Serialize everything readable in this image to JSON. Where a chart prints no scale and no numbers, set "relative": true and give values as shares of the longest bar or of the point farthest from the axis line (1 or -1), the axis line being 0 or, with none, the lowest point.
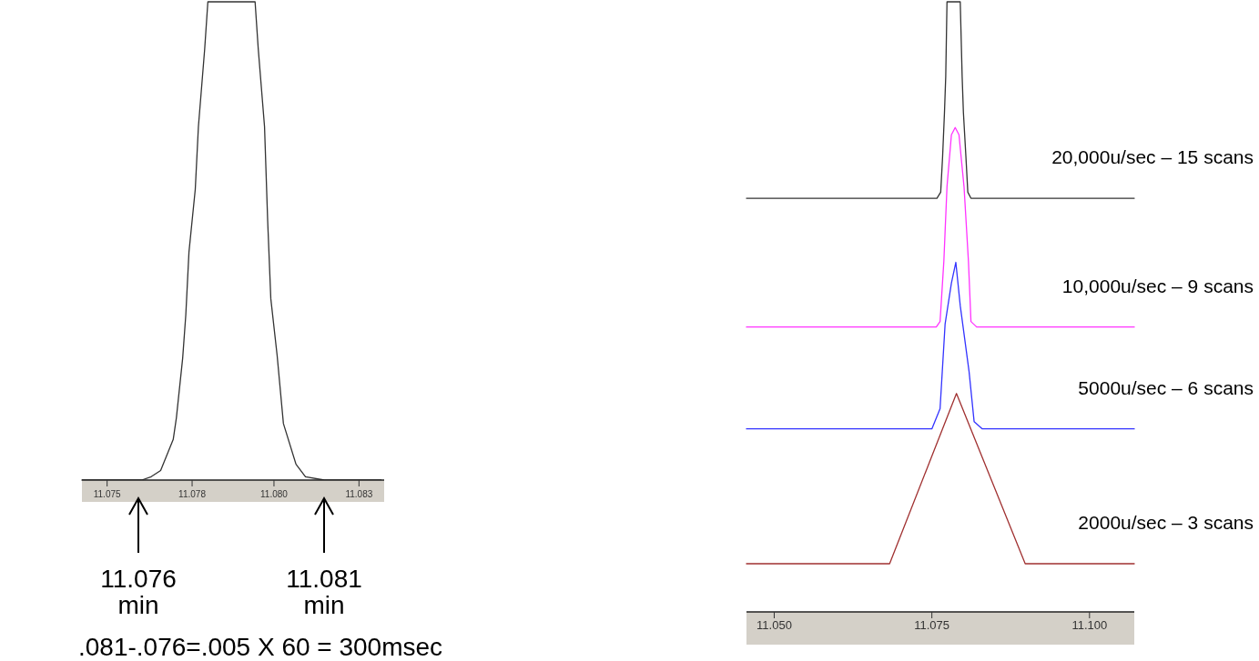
{
  "chart_data": [
    {
      "type": "line",
      "relative": true,
      "xlim": [
        11.0742,
        11.0838
      ],
      "xticks": [
        {
          "value": 11.075,
          "label": "11.075"
        },
        {
          "value": 11.0777,
          "label": "11.078"
        },
        {
          "value": 11.0803,
          "label": "11.080"
        },
        {
          "value": 11.083,
          "label": "11.083"
        }
      ],
      "tick_labels": "x",
      "grid": false,
      "legend": false,
      "series": [
        {
          "color": "#333333",
          "x": [
            11.0742,
            11.0761,
            11.0764,
            11.0767,
            11.0771,
            11.0772,
            11.0774,
            11.0775,
            11.0776,
            11.0778,
            11.0779,
            11.0781,
            11.0782,
            11.0797,
            11.0798,
            11.08,
            11.0801,
            11.0802,
            11.0804,
            11.0806,
            11.081,
            11.0813,
            11.0819,
            11.0837
          ],
          "values": [
            0,
            0,
            0.007,
            0.02,
            0.085,
            0.13,
            0.255,
            0.346,
            0.477,
            0.608,
            0.739,
            0.902,
            1,
            1,
            0.902,
            0.739,
            0.542,
            0.379,
            0.261,
            0.118,
            0.033,
            0.007,
            0,
            0
          ]
        }
      ],
      "annotations": [
        "11.076 min",
        "11.081 min",
        ".081-.076=.005 X 60 = 300msec"
      ]
    },
    {
      "type": "line",
      "relative": true,
      "xlim": [
        11.0456,
        11.1071
      ],
      "xticks": [
        {
          "value": 11.05,
          "label": "11.050"
        },
        {
          "value": 11.075,
          "label": "11.075"
        },
        {
          "value": 11.1,
          "label": "11.100"
        }
      ],
      "tick_labels": "x",
      "grid": false,
      "legend": false,
      "series": [
        {
          "name": "20,000u/sec – 15 scans",
          "color": "#333333",
          "x": [
            11.0456,
            11.0758,
            11.0764,
            11.0767,
            11.077,
            11.0772,
            11.0774,
            11.0795,
            11.0798,
            11.08,
            11.0804,
            11.0807,
            11.0812,
            11.1071
          ],
          "values": [
            0.678,
            0.678,
            0.688,
            0.746,
            0.819,
            0.878,
            1,
            1,
            0.878,
            0.819,
            0.746,
            0.688,
            0.678,
            0.678
          ]
        },
        {
          "name": "10,000u/sec – 9 scans",
          "color": "#ff33ff",
          "x": [
            11.0456,
            11.0757,
            11.0763,
            11.0769,
            11.0774,
            11.0781,
            11.0787,
            11.0793,
            11.0801,
            11.0808,
            11.0812,
            11.0821,
            11.1071
          ],
          "values": [
            0.467,
            0.467,
            0.476,
            0.575,
            0.697,
            0.782,
            0.794,
            0.782,
            0.697,
            0.575,
            0.476,
            0.467,
            0.467
          ]
        },
        {
          "name": "5000u/sec – 6 scans",
          "color": "#3333ff",
          "x": [
            11.0456,
            11.075,
            11.0763,
            11.0771,
            11.0781,
            11.0788,
            11.0795,
            11.0809,
            11.0817,
            11.083,
            11.1071
          ],
          "values": [
            0.3,
            0.3,
            0.333,
            0.472,
            0.539,
            0.573,
            0.502,
            0.394,
            0.312,
            0.3,
            0.3
          ]
        },
        {
          "name": "2000u/sec – 3 scans",
          "color": "#a03030",
          "x": [
            11.0456,
            11.0683,
            11.0789,
            11.0898,
            11.1071
          ],
          "values": [
            0.079,
            0.079,
            0.358,
            0.079,
            0.079
          ]
        }
      ]
    }
  ]
}
